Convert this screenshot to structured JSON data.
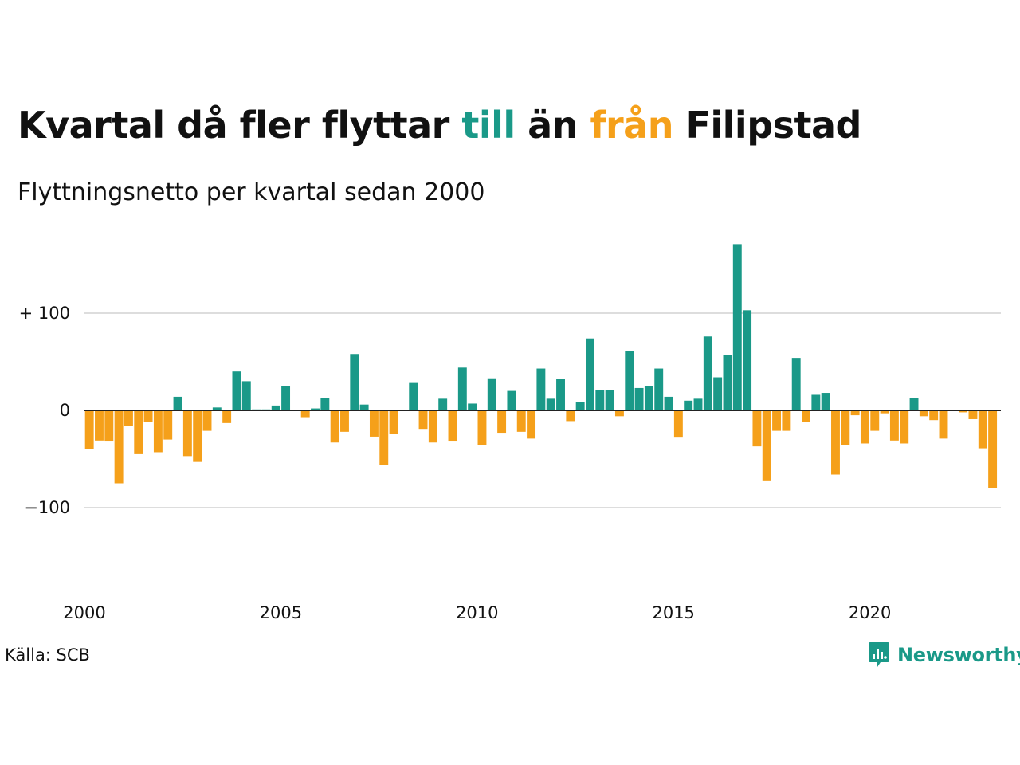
{
  "title": {
    "part1": "Kvartal då fler flyttar ",
    "pos_word": "till",
    "part2": " än ",
    "neg_word": "från",
    "part3": " Filipstad"
  },
  "subtitle": "Flyttningsnetto per kvartal sedan 2000",
  "source": "Källa: SCB",
  "brand": {
    "name": "Newsworthy",
    "icon": "newsworthy-logo-icon"
  },
  "colors": {
    "positive": "#1a9988",
    "negative": "#f5a01a",
    "grid": "#dddddd",
    "axis": "#222222"
  },
  "chart_data": {
    "type": "bar",
    "x_start": "2000 Q1",
    "frequency": "quarterly",
    "values": [
      -40,
      -31,
      -32,
      -75,
      -16,
      -45,
      -12,
      -43,
      -30,
      14,
      -47,
      -53,
      -21,
      3,
      -13,
      40,
      30,
      1,
      1,
      5,
      25,
      0,
      -7,
      2,
      13,
      -33,
      -22,
      58,
      6,
      -27,
      -56,
      -24,
      0,
      29,
      -19,
      -33,
      12,
      -32,
      44,
      7,
      -36,
      33,
      -23,
      20,
      -22,
      -29,
      43,
      12,
      32,
      -11,
      9,
      74,
      21,
      21,
      -6,
      61,
      23,
      25,
      43,
      14,
      -28,
      10,
      12,
      76,
      34,
      57,
      171,
      103,
      -37,
      -72,
      -21,
      -21,
      54,
      -12,
      16,
      18,
      -66,
      -36,
      -5,
      -34,
      -21,
      -3,
      -31,
      -34,
      13,
      -6,
      -10,
      -29,
      0,
      -2,
      -9,
      -39,
      -80
    ],
    "yticks": [
      {
        "value": 100,
        "label": "+ 100"
      },
      {
        "value": 0,
        "label": "0"
      },
      {
        "value": -100,
        "label": "−100"
      }
    ],
    "xticks": [
      {
        "year": 2000,
        "label": "2000"
      },
      {
        "year": 2005,
        "label": "2005"
      },
      {
        "year": 2010,
        "label": "2010"
      },
      {
        "year": 2015,
        "label": "2015"
      },
      {
        "year": 2020,
        "label": "2020"
      }
    ],
    "ylim": [
      -190,
      180
    ],
    "grid": true,
    "legend": "none"
  }
}
